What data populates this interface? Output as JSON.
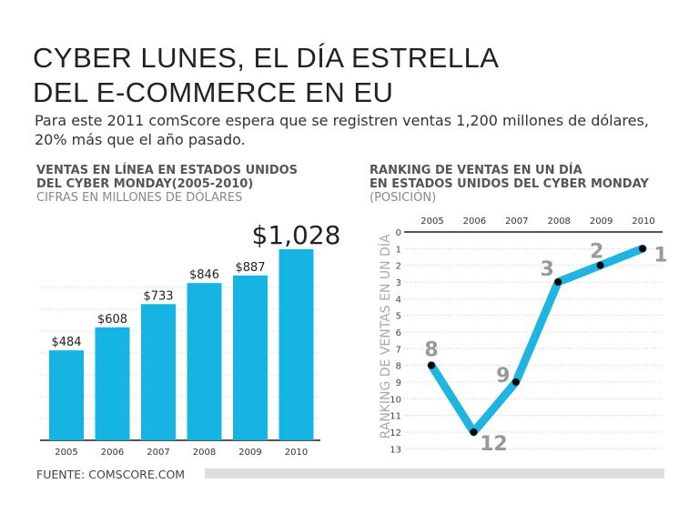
{
  "title_line1": "CYBER LUNES, EL DÍA ESTRELLA",
  "title_line2": "DEL E-COMMERCE EN EU",
  "subtitle": "Para este 2011 comScore espera que se registren ventas 1,200 millones de dólares, 20% más que el año pasado.",
  "source": "FUENTE: COMSCORE.COM",
  "colors": {
    "bar": "#16b4e3",
    "line": "#1fb5e0",
    "point": "#000000",
    "label": "#999999"
  },
  "chart_data": [
    {
      "type": "bar",
      "title_line1": "VENTAS EN LÍNEA EN ESTADOS UNIDOS",
      "title_line2": "DEL CYBER MONDAY(2005-2010)",
      "subtitle": "CIFRAS EN MILLONES DE DÓLARES",
      "categories": [
        "2005",
        "2006",
        "2007",
        "2008",
        "2009",
        "2010"
      ],
      "values": [
        484,
        608,
        733,
        846,
        887,
        1028
      ],
      "labels": [
        "$484",
        "$608",
        "$733",
        "$846",
        "$887",
        "$1,028"
      ],
      "ylim": [
        0,
        1050
      ],
      "grid": true
    },
    {
      "type": "line",
      "title_line1": "RANKING DE VENTAS EN UN DÍA",
      "title_line2": "EN ESTADOS UNIDOS DEL CYBER MONDAY",
      "subtitle": "(POSICIÓN)",
      "ylabel": "RANKING DE VENTAS EN UN DÍA",
      "categories": [
        "2005",
        "2006",
        "2007",
        "2008",
        "2009",
        "2010"
      ],
      "values": [
        8,
        12,
        9,
        3,
        2,
        1
      ],
      "yticks": [
        "0",
        "1",
        "2",
        "3",
        "4",
        "5",
        "6",
        "7",
        "8",
        "9",
        "10",
        "11",
        "12",
        "13"
      ],
      "ylim": [
        0,
        13
      ],
      "y_inverted": true,
      "grid": true
    }
  ]
}
